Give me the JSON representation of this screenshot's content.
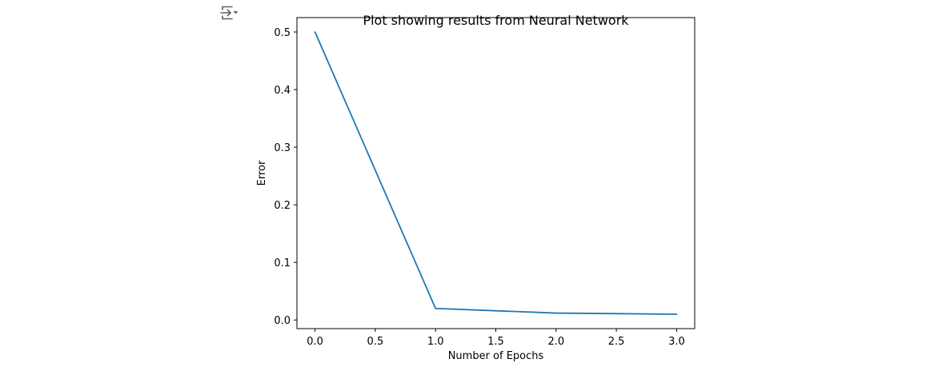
{
  "colors": {
    "series": "#1f77b4",
    "axes": "#000000",
    "toolbar_icon": "#616161"
  },
  "toolbar": {
    "output_toggle_icon": "output-toggle-icon"
  },
  "chart_data": {
    "type": "line",
    "title": "Plot showing results from Neural Network",
    "xlabel": "Number of Epochs",
    "ylabel": "Error",
    "xlim": [
      -0.15,
      3.15
    ],
    "ylim": [
      -0.015,
      0.525
    ],
    "xticks": [
      0.0,
      0.5,
      1.0,
      1.5,
      2.0,
      2.5,
      3.0
    ],
    "xtick_labels": [
      "0.0",
      "0.5",
      "1.0",
      "1.5",
      "2.0",
      "2.5",
      "3.0"
    ],
    "yticks": [
      0.0,
      0.1,
      0.2,
      0.3,
      0.4,
      0.5
    ],
    "ytick_labels": [
      "0.0",
      "0.1",
      "0.2",
      "0.3",
      "0.4",
      "0.5"
    ],
    "grid": false,
    "legend": "none",
    "series": [
      {
        "x": [
          0,
          1,
          2,
          3
        ],
        "values": [
          0.5,
          0.02,
          0.012,
          0.01
        ]
      }
    ]
  }
}
